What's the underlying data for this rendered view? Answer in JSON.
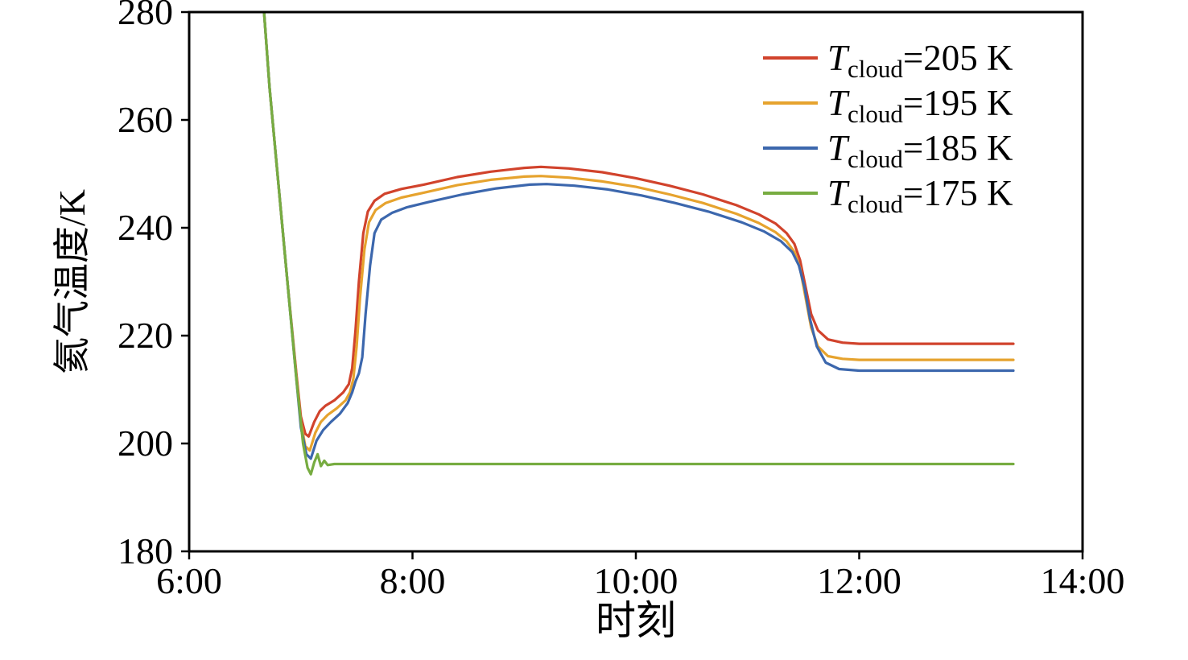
{
  "chart_data": {
    "type": "line",
    "title": "",
    "xlabel": "时刻",
    "ylabel": "氦气温度/K",
    "xlim": [
      6,
      14
    ],
    "ylim": [
      180,
      280
    ],
    "x_ticks": [
      {
        "v": 6,
        "label": "6:00"
      },
      {
        "v": 8,
        "label": "8:00"
      },
      {
        "v": 10,
        "label": "10:00"
      },
      {
        "v": 12,
        "label": "12:00"
      },
      {
        "v": 14,
        "label": "14:00"
      }
    ],
    "y_ticks": [
      {
        "v": 180,
        "label": "180"
      },
      {
        "v": 200,
        "label": "200"
      },
      {
        "v": 220,
        "label": "220"
      },
      {
        "v": 240,
        "label": "240"
      },
      {
        "v": 260,
        "label": "260"
      },
      {
        "v": 280,
        "label": "280"
      }
    ],
    "grid": false,
    "legend_position": "top-right-inside",
    "series": [
      {
        "name": "Tcloud=205 K",
        "label": {
          "pre": "T",
          "sub": "cloud",
          "post": "=205 K"
        },
        "color": "#d1432c",
        "points": [
          [
            6.66,
            283
          ],
          [
            6.72,
            266
          ],
          [
            6.8,
            248
          ],
          [
            6.88,
            230
          ],
          [
            6.96,
            213
          ],
          [
            7.0,
            205
          ],
          [
            7.04,
            201.8
          ],
          [
            7.07,
            201.3
          ],
          [
            7.12,
            204
          ],
          [
            7.17,
            206
          ],
          [
            7.22,
            207
          ],
          [
            7.3,
            208
          ],
          [
            7.38,
            209.5
          ],
          [
            7.43,
            211
          ],
          [
            7.46,
            214
          ],
          [
            7.49,
            221
          ],
          [
            7.52,
            230
          ],
          [
            7.56,
            239
          ],
          [
            7.6,
            243
          ],
          [
            7.66,
            245
          ],
          [
            7.75,
            246.3
          ],
          [
            7.9,
            247.2
          ],
          [
            8.1,
            248
          ],
          [
            8.4,
            249.4
          ],
          [
            8.7,
            250.4
          ],
          [
            9.0,
            251.1
          ],
          [
            9.15,
            251.3
          ],
          [
            9.4,
            251.0
          ],
          [
            9.7,
            250.3
          ],
          [
            10.0,
            249.2
          ],
          [
            10.3,
            247.8
          ],
          [
            10.6,
            246.2
          ],
          [
            10.9,
            244.2
          ],
          [
            11.1,
            242.5
          ],
          [
            11.25,
            240.8
          ],
          [
            11.35,
            239
          ],
          [
            11.42,
            237
          ],
          [
            11.47,
            234
          ],
          [
            11.52,
            229
          ],
          [
            11.57,
            224
          ],
          [
            11.63,
            221
          ],
          [
            11.72,
            219.3
          ],
          [
            11.85,
            218.7
          ],
          [
            12.0,
            218.5
          ],
          [
            13.38,
            218.5
          ]
        ]
      },
      {
        "name": "Tcloud=195 K",
        "label": {
          "pre": "T",
          "sub": "cloud",
          "post": "=195 K"
        },
        "color": "#e6a32e",
        "points": [
          [
            6.66,
            283
          ],
          [
            6.72,
            266
          ],
          [
            6.8,
            248
          ],
          [
            6.88,
            230
          ],
          [
            6.96,
            212.5
          ],
          [
            7.0,
            204
          ],
          [
            7.04,
            199.5
          ],
          [
            7.08,
            198.7
          ],
          [
            7.13,
            202
          ],
          [
            7.18,
            204
          ],
          [
            7.24,
            205.3
          ],
          [
            7.32,
            206.5
          ],
          [
            7.4,
            208
          ],
          [
            7.44,
            209.5
          ],
          [
            7.47,
            212
          ],
          [
            7.5,
            218
          ],
          [
            7.53,
            227
          ],
          [
            7.57,
            236
          ],
          [
            7.61,
            241
          ],
          [
            7.67,
            243.3
          ],
          [
            7.76,
            244.6
          ],
          [
            7.9,
            245.6
          ],
          [
            8.1,
            246.5
          ],
          [
            8.4,
            247.9
          ],
          [
            8.7,
            248.9
          ],
          [
            9.0,
            249.5
          ],
          [
            9.15,
            249.6
          ],
          [
            9.4,
            249.3
          ],
          [
            9.7,
            248.6
          ],
          [
            10.0,
            247.6
          ],
          [
            10.3,
            246.2
          ],
          [
            10.6,
            244.6
          ],
          [
            10.9,
            242.6
          ],
          [
            11.1,
            240.9
          ],
          [
            11.25,
            239.2
          ],
          [
            11.35,
            237.5
          ],
          [
            11.42,
            235.5
          ],
          [
            11.47,
            232.5
          ],
          [
            11.52,
            227
          ],
          [
            11.57,
            221.5
          ],
          [
            11.63,
            218
          ],
          [
            11.72,
            216.2
          ],
          [
            11.85,
            215.7
          ],
          [
            12.0,
            215.5
          ],
          [
            13.38,
            215.5
          ]
        ]
      },
      {
        "name": "Tcloud=185 K",
        "label": {
          "pre": "T",
          "sub": "cloud",
          "post": "=185 K"
        },
        "color": "#3c67ad",
        "points": [
          [
            6.66,
            283
          ],
          [
            6.72,
            266
          ],
          [
            6.8,
            248
          ],
          [
            6.88,
            230
          ],
          [
            6.96,
            212
          ],
          [
            7.0,
            203
          ],
          [
            7.05,
            198
          ],
          [
            7.09,
            197.2
          ],
          [
            7.14,
            200.5
          ],
          [
            7.2,
            202.5
          ],
          [
            7.27,
            204
          ],
          [
            7.35,
            205.5
          ],
          [
            7.42,
            207.5
          ],
          [
            7.46,
            209.5
          ],
          [
            7.49,
            211.5
          ],
          [
            7.52,
            213
          ],
          [
            7.55,
            216
          ],
          [
            7.58,
            224
          ],
          [
            7.62,
            233
          ],
          [
            7.66,
            239
          ],
          [
            7.72,
            241.5
          ],
          [
            7.82,
            242.8
          ],
          [
            7.95,
            243.8
          ],
          [
            8.15,
            244.8
          ],
          [
            8.45,
            246.2
          ],
          [
            8.75,
            247.3
          ],
          [
            9.05,
            248
          ],
          [
            9.2,
            248.1
          ],
          [
            9.45,
            247.8
          ],
          [
            9.75,
            247.1
          ],
          [
            10.05,
            246
          ],
          [
            10.35,
            244.6
          ],
          [
            10.65,
            243
          ],
          [
            10.95,
            241
          ],
          [
            11.15,
            239.3
          ],
          [
            11.3,
            237.5
          ],
          [
            11.4,
            235.5
          ],
          [
            11.46,
            233
          ],
          [
            11.51,
            229
          ],
          [
            11.56,
            223
          ],
          [
            11.62,
            218
          ],
          [
            11.7,
            215
          ],
          [
            11.82,
            213.8
          ],
          [
            12.0,
            213.5
          ],
          [
            13.38,
            213.5
          ]
        ]
      },
      {
        "name": "Tcloud=175 K",
        "label": {
          "pre": "T",
          "sub": "cloud",
          "post": "=175 K"
        },
        "color": "#77ac41",
        "points": [
          [
            6.66,
            283
          ],
          [
            6.72,
            266
          ],
          [
            6.8,
            248
          ],
          [
            6.88,
            230
          ],
          [
            6.96,
            212
          ],
          [
            7.02,
            200
          ],
          [
            7.06,
            195.5
          ],
          [
            7.09,
            194.3
          ],
          [
            7.12,
            196.5
          ],
          [
            7.15,
            198
          ],
          [
            7.18,
            195.8
          ],
          [
            7.21,
            196.8
          ],
          [
            7.24,
            196.0
          ],
          [
            7.3,
            196.2
          ],
          [
            8.0,
            196.2
          ],
          [
            10.0,
            196.2
          ],
          [
            13.38,
            196.2
          ]
        ]
      }
    ]
  }
}
